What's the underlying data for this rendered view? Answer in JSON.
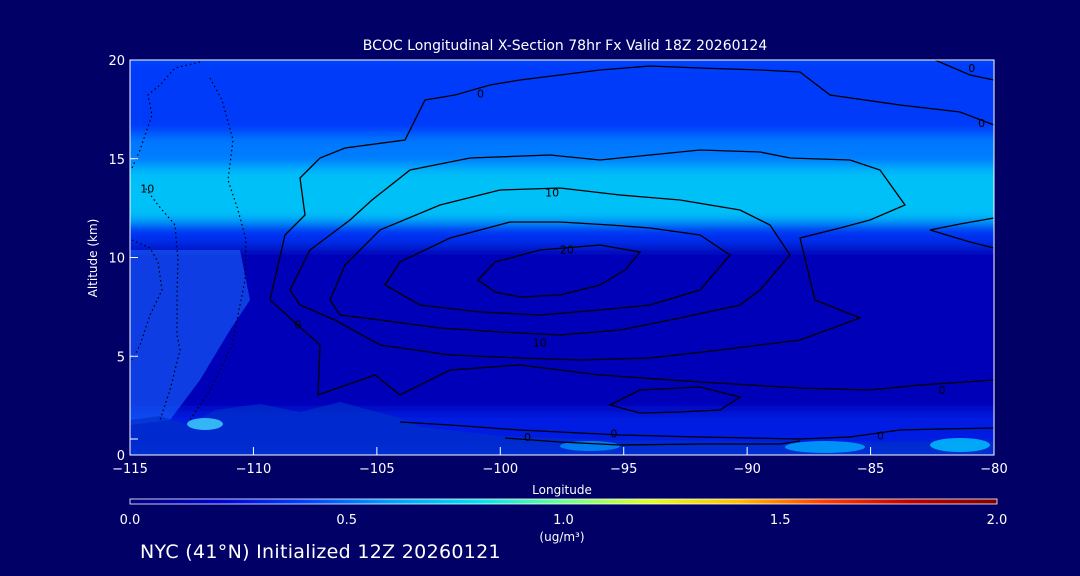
{
  "chart_data": {
    "type": "contour",
    "title": "BCOC Longitudinal X-Section 78hr  Fx Valid 18Z 20260124",
    "xlabel": "Longitude",
    "ylabel": "Altitude (km)",
    "xlim": [
      -115,
      -80
    ],
    "ylim": [
      0,
      20
    ],
    "x_ticks": [
      -115,
      -110,
      -105,
      -100,
      -95,
      -90,
      -85,
      -80
    ],
    "x_tick_labels": [
      "−115",
      "−110",
      "−105",
      "−100",
      "−95",
      "−90",
      "−85",
      "−80"
    ],
    "y_ticks": [
      0,
      5,
      10,
      15,
      20
    ],
    "y_tick_labels": [
      "0",
      "5",
      "10",
      "15",
      "20"
    ],
    "contour_levels": [
      0,
      10,
      20
    ],
    "contour_labels": [
      {
        "text": "0",
        "lon": -100.8,
        "alt": 18.3
      },
      {
        "text": "0",
        "lon": -80.9,
        "alt": 19.6
      },
      {
        "text": "0",
        "lon": -80.5,
        "alt": 16.8
      },
      {
        "text": "10",
        "lon": -114.3,
        "alt": 13.5
      },
      {
        "text": "10",
        "lon": -97.9,
        "alt": 13.3
      },
      {
        "text": "20",
        "lon": -97.3,
        "alt": 10.4
      },
      {
        "text": "10",
        "lon": -98.4,
        "alt": 5.7
      },
      {
        "text": "0",
        "lon": -108.2,
        "alt": 6.6
      },
      {
        "text": "0",
        "lon": -82.1,
        "alt": 3.3
      },
      {
        "text": "0",
        "lon": -98.9,
        "alt": 0.9
      },
      {
        "text": "0",
        "lon": -95.4,
        "alt": 1.1
      },
      {
        "text": "0",
        "lon": -84.6,
        "alt": 1.0
      }
    ],
    "colorbar": {
      "min": 0.0,
      "max": 2.0,
      "tick_values": [
        0.0,
        0.5,
        1.0,
        1.5,
        2.0
      ],
      "tick_labels": [
        "0.0",
        "0.5",
        "1.0",
        "1.5",
        "2.0"
      ],
      "units": "(ug/m³)",
      "colors": [
        "#000080",
        "#0000d0",
        "#0040ff",
        "#00a0ff",
        "#00e0f0",
        "#70ff90",
        "#e0ff20",
        "#ffc000",
        "#ff4000",
        "#c00000",
        "#800000"
      ]
    },
    "field_bands": [
      {
        "alt_min": 16.2,
        "alt_max": 20.0,
        "value": 0.38
      },
      {
        "alt_min": 14.6,
        "alt_max": 16.2,
        "value": 0.52
      },
      {
        "alt_min": 11.8,
        "alt_max": 14.6,
        "value": 0.7
      },
      {
        "alt_min": 10.6,
        "alt_max": 11.8,
        "value": 0.35
      },
      {
        "alt_min": 2.2,
        "alt_max": 10.6,
        "value": 0.14
      },
      {
        "alt_min": 0.0,
        "alt_max": 2.2,
        "value": 0.28
      }
    ]
  },
  "footer": "NYC (41°N) Initialized 12Z 20260121"
}
